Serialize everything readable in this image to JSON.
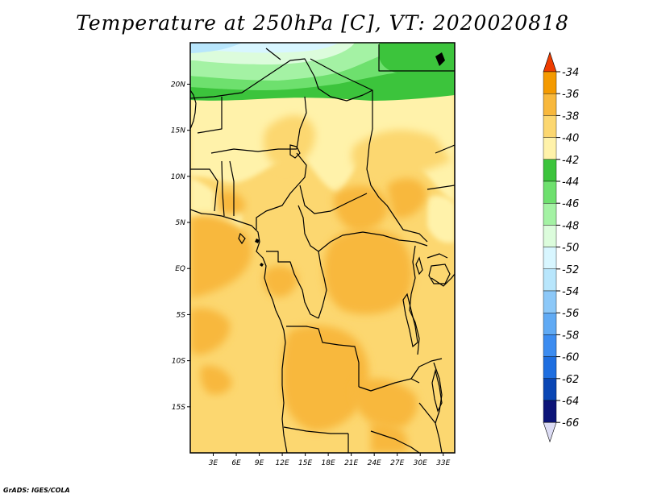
{
  "title": "Temperature at 250hPa [C], VT: 2020020818",
  "credit": "GrADS: IGES/COLA",
  "map": {
    "lon_range": [
      0,
      34.5
    ],
    "lat_range": [
      -20,
      24.5
    ],
    "lon_ticks": [
      {
        "value": 3,
        "label": "3E"
      },
      {
        "value": 6,
        "label": "6E"
      },
      {
        "value": 9,
        "label": "9E"
      },
      {
        "value": 12,
        "label": "12E"
      },
      {
        "value": 15,
        "label": "15E"
      },
      {
        "value": 18,
        "label": "18E"
      },
      {
        "value": 21,
        "label": "21E"
      },
      {
        "value": 24,
        "label": "24E"
      },
      {
        "value": 27,
        "label": "27E"
      },
      {
        "value": 30,
        "label": "30E"
      },
      {
        "value": 33,
        "label": "33E"
      }
    ],
    "lat_ticks": [
      {
        "value": 20,
        "label": "20N"
      },
      {
        "value": 15,
        "label": "15N"
      },
      {
        "value": 10,
        "label": "10N"
      },
      {
        "value": 5,
        "label": "5N"
      },
      {
        "value": 0,
        "label": "EQ"
      },
      {
        "value": -5,
        "label": "5S"
      },
      {
        "value": -10,
        "label": "10S"
      },
      {
        "value": -15,
        "label": "15S"
      }
    ]
  },
  "colorbar": {
    "levels": [
      {
        "label": "-34",
        "color": "#f06a00"
      },
      {
        "label": "-36",
        "color": "#f49a00"
      },
      {
        "label": "-38",
        "color": "#f8b83c"
      },
      {
        "label": "-40",
        "color": "#fcd770"
      },
      {
        "label": "-42",
        "color": "#fff2aa"
      },
      {
        "label": "-44",
        "color": "#3cc43c"
      },
      {
        "label": "-46",
        "color": "#6ee06e"
      },
      {
        "label": "-48",
        "color": "#a4f2a4"
      },
      {
        "label": "-50",
        "color": "#dcfcdc"
      },
      {
        "label": "-52",
        "color": "#d8f6ff"
      },
      {
        "label": "-54",
        "color": "#b8e6fc"
      },
      {
        "label": "-56",
        "color": "#8cc8f8"
      },
      {
        "label": "-58",
        "color": "#60aaf4"
      },
      {
        "label": "-60",
        "color": "#3c8cf0"
      },
      {
        "label": "-62",
        "color": "#1e6ee0"
      },
      {
        "label": "-64",
        "color": "#0a46b4"
      },
      {
        "label": "-66",
        "color": "#0c1478"
      }
    ],
    "top_arrow_color": "#ee3c00",
    "bottom_arrow_color": "#dcdcf4"
  }
}
